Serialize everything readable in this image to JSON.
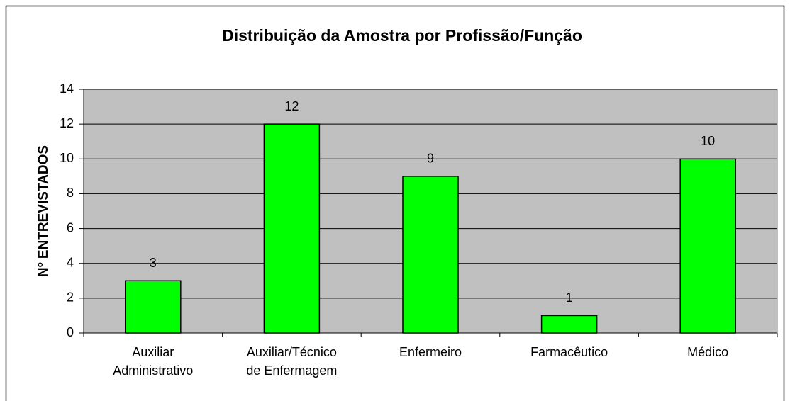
{
  "chart_data": {
    "type": "bar",
    "title": "Distribuição da Amostra por Profissão/Função",
    "y_label": "Nº ENTREVISTADOS",
    "categories": [
      "Auxiliar\nAdministrativo",
      "Auxiliar/Técnico\nde Enfermagem",
      "Enfermeiro",
      "Farmacêutico",
      "Médico"
    ],
    "values": [
      3,
      12,
      9,
      1,
      10
    ],
    "color": "#00ff00",
    "ylim": [
      0,
      14
    ],
    "yticks": [
      0,
      2,
      4,
      6,
      8,
      10,
      12,
      14
    ],
    "grid": true
  }
}
